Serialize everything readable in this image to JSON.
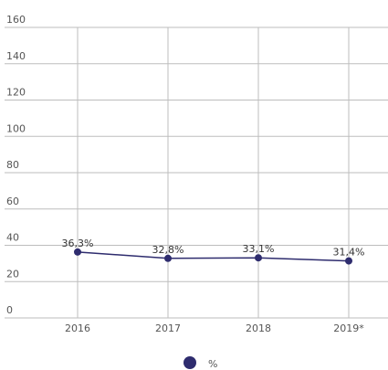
{
  "chart_data": {
    "type": "line",
    "categories": [
      "2016",
      "2017",
      "2018",
      "2019*"
    ],
    "series": [
      {
        "name": "%",
        "color": "#2e2c6e",
        "values": [
          36.3,
          32.8,
          33.1,
          31.4
        ],
        "value_labels": [
          "36,3%",
          "32,8%",
          "33,1%",
          "31,4%"
        ]
      }
    ],
    "ylim": [
      0,
      160
    ],
    "yticks": [
      0,
      20,
      40,
      60,
      80,
      100,
      120,
      140,
      160
    ],
    "grid": true,
    "legend": "bottom"
  }
}
